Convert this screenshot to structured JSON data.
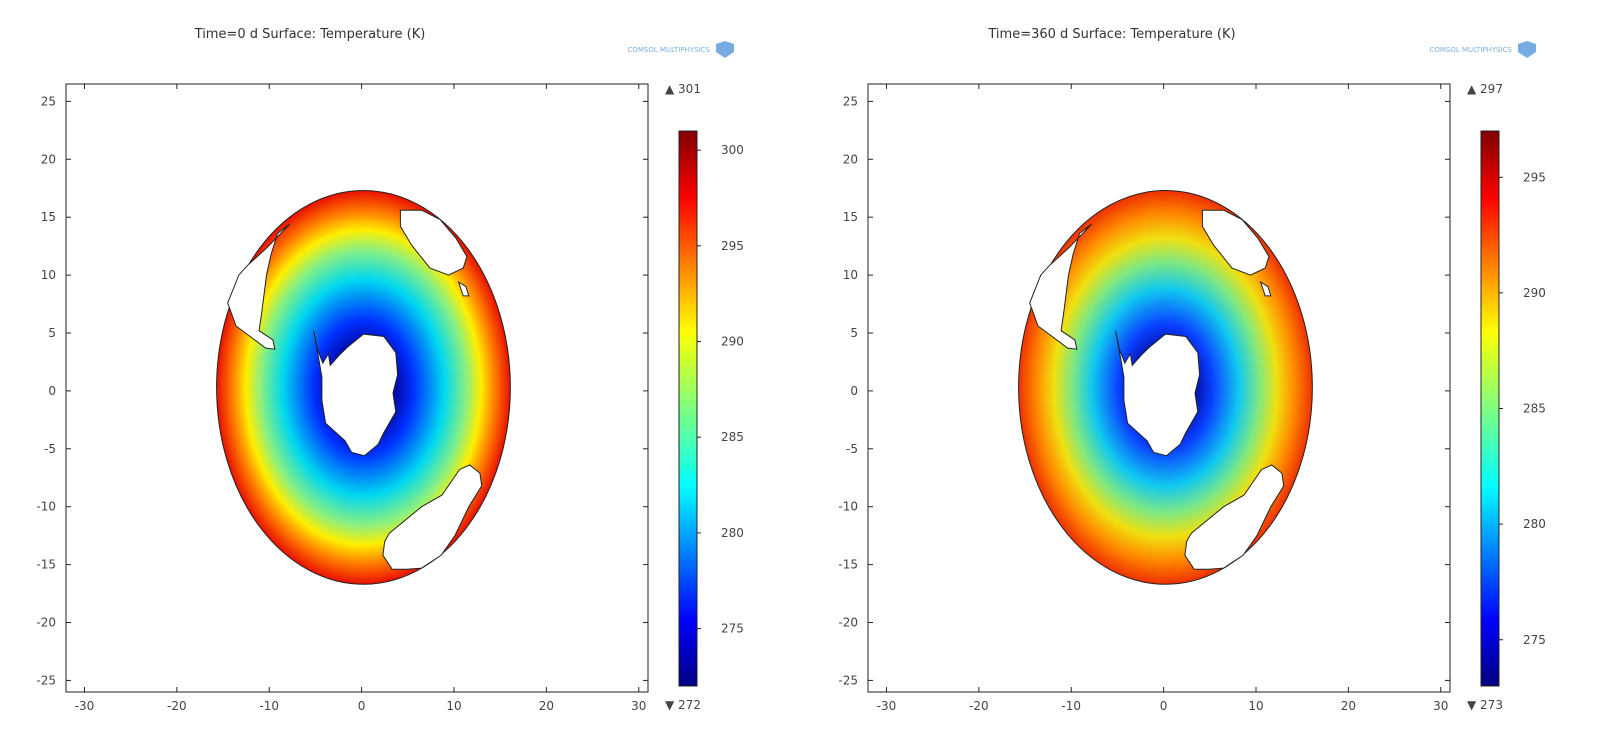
{
  "chart_data": [
    {
      "type": "heatmap",
      "title": "Time=0 d Surface: Temperature (K)",
      "xlim": [
        -32,
        31
      ],
      "ylim": [
        -26,
        26.5
      ],
      "x_ticks": [
        -30,
        -20,
        -10,
        0,
        10,
        20,
        30
      ],
      "y_ticks": [
        25,
        20,
        15,
        10,
        5,
        0,
        -5,
        -10,
        -15,
        -20,
        -25
      ],
      "colorbar": {
        "min": 272,
        "max": 301,
        "max_label": "▲ 301",
        "min_label": "▼ 272",
        "ticks": [
          300,
          295,
          290,
          285,
          280,
          275
        ],
        "colormap": "rainbow (dark blue → red)"
      },
      "grid": false,
      "watermark": "COMSOL MULTIPHYSICS"
    },
    {
      "type": "heatmap",
      "title": "Time=360 d Surface: Temperature (K)",
      "xlim": [
        -32,
        31
      ],
      "ylim": [
        -26,
        26.5
      ],
      "x_ticks": [
        -30,
        -20,
        -10,
        0,
        10,
        20,
        30
      ],
      "y_ticks": [
        25,
        20,
        15,
        10,
        5,
        0,
        -5,
        -10,
        -15,
        -20,
        -25
      ],
      "colorbar": {
        "min": 273,
        "max": 297,
        "max_label": "▲ 297",
        "min_label": "▼ 273",
        "ticks": [
          295,
          290,
          285,
          280,
          275
        ],
        "colormap": "rainbow (dark blue → red)"
      },
      "grid": false,
      "watermark": "COMSOL MULTIPHYSICS"
    }
  ]
}
